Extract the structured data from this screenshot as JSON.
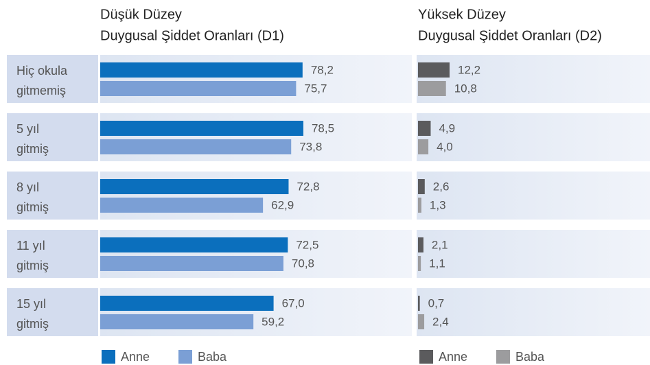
{
  "chart_data": [
    {
      "type": "bar",
      "orientation": "horizontal",
      "title": "Düşük Düzey",
      "subtitle": "Duygusal Şiddet Oranları (D1)",
      "categories": [
        [
          "Hiç okula",
          "gitmemiş"
        ],
        [
          "5 yıl",
          "gitmiş"
        ],
        [
          "8 yıl",
          "gitmiş"
        ],
        [
          "11 yıl",
          "gitmiş"
        ],
        [
          "15 yıl",
          "gitmiş"
        ]
      ],
      "xlim": [
        0,
        100
      ],
      "series": [
        {
          "name": "Anne",
          "color": "#0b6fbd",
          "values": [
            78.2,
            78.5,
            72.8,
            72.5,
            67.0
          ],
          "value_labels": [
            "78,2",
            "78,5",
            "72,8",
            "72,5",
            "67,0"
          ]
        },
        {
          "name": "Baba",
          "color": "#7b9fd5",
          "values": [
            75.7,
            73.8,
            62.9,
            70.8,
            59.2
          ],
          "value_labels": [
            "75,7",
            "73,8",
            "62,9",
            "70,8",
            "59,2"
          ]
        }
      ]
    },
    {
      "type": "bar",
      "orientation": "horizontal",
      "title": "Yüksek Düzey",
      "subtitle": "Duygusal Şiddet Oranları (D2)",
      "xlim": [
        0,
        100
      ],
      "series": [
        {
          "name": "Anne",
          "color": "#5b5b5d",
          "values": [
            12.2,
            4.9,
            2.6,
            2.1,
            0.7
          ],
          "value_labels": [
            "12,2",
            "4,9",
            "2,6",
            "2,1",
            "0,7"
          ]
        },
        {
          "name": "Baba",
          "color": "#9c9c9e",
          "values": [
            10.8,
            4.0,
            1.3,
            1.1,
            2.4
          ],
          "value_labels": [
            "10,8",
            "4,0",
            "1,3",
            "1,1",
            "2,4"
          ]
        }
      ]
    }
  ]
}
